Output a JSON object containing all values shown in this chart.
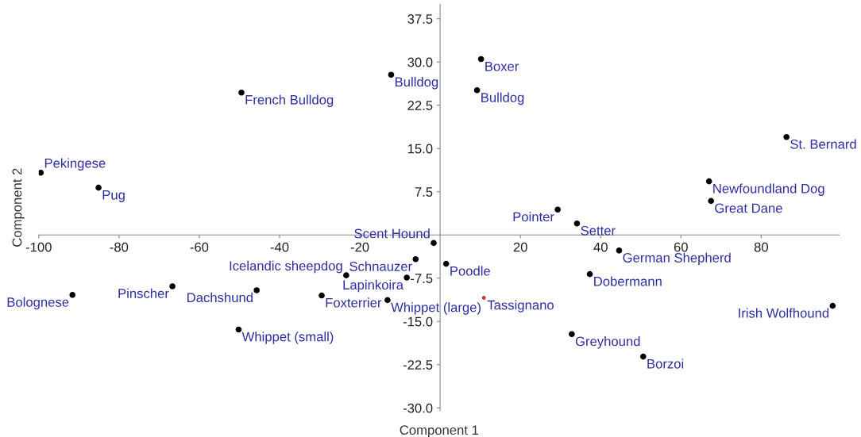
{
  "chart_data": {
    "type": "scatter",
    "xlabel": "Component 1",
    "ylabel": "Component 2",
    "marker": "circle",
    "grid": false,
    "legend": false,
    "xlim": [
      -100,
      99.5
    ],
    "ylim": [
      -30.5,
      40
    ],
    "xticks": [
      -100,
      -80,
      -60,
      -40,
      -20,
      20,
      40,
      60,
      80
    ],
    "yticks": [
      {
        "value": -30,
        "label": "-30.0"
      },
      {
        "value": -22.5,
        "label": "-22.5"
      },
      {
        "value": -15,
        "label": "-15.0"
      },
      {
        "value": -7.5,
        "label": "-7.5"
      },
      {
        "value": 7.5,
        "label": "7.5"
      },
      {
        "value": 15,
        "label": "15.0"
      },
      {
        "value": 22.5,
        "label": "22.5"
      },
      {
        "value": 30,
        "label": "30.0"
      },
      {
        "value": 37.5,
        "label": "37.5"
      }
    ],
    "series": [
      {
        "color": "#000000",
        "x": [
          -99.5,
          -85.1,
          -49.5,
          -12.2,
          10.2,
          9.2,
          86.3,
          67.0,
          67.5,
          29.3,
          34.1,
          44.6,
          37.3,
          97.8,
          32.8,
          50.6,
          -1.6,
          1.5,
          -6.1,
          -8.3,
          -23.4,
          -13.1,
          -29.5,
          -45.7,
          -66.7,
          -91.6,
          -50.2
        ],
        "values": [
          10.8,
          8.2,
          24.7,
          27.8,
          30.5,
          25.1,
          17.0,
          9.3,
          5.9,
          4.4,
          2.0,
          -2.7,
          -6.8,
          -12.3,
          -17.2,
          -21.1,
          -1.4,
          -5.0,
          -4.2,
          -7.4,
          -7.0,
          -11.3,
          -10.5,
          -9.6,
          -8.9,
          -10.4,
          -16.4
        ]
      },
      {
        "color": "#cc3344",
        "x": [
          10.9
        ],
        "values": [
          -10.9
        ]
      }
    ],
    "annotations": [
      {
        "text": "Pekingese",
        "x": -99.5,
        "y": 10.8
      },
      {
        "text": "Pug",
        "x": -85.1,
        "y": 8.2
      },
      {
        "text": "French Bulldog",
        "x": -49.5,
        "y": 24.7
      },
      {
        "text": "Bulldog",
        "x": -12.2,
        "y": 27.8
      },
      {
        "text": "Boxer",
        "x": 10.2,
        "y": 30.5
      },
      {
        "text": "Bulldog",
        "x": 9.2,
        "y": 25.1
      },
      {
        "text": "St. Bernard",
        "x": 86.3,
        "y": 17.0
      },
      {
        "text": "Newfoundland Dog",
        "x": 67.0,
        "y": 9.3
      },
      {
        "text": "Great Dane",
        "x": 67.5,
        "y": 5.9
      },
      {
        "text": "Pointer",
        "x": 29.3,
        "y": 4.4
      },
      {
        "text": "Setter",
        "x": 34.1,
        "y": 2.0
      },
      {
        "text": "German Shepherd",
        "x": 44.6,
        "y": -2.7
      },
      {
        "text": "Dobermann",
        "x": 37.3,
        "y": -6.8
      },
      {
        "text": "Irish Wolfhound",
        "x": 97.8,
        "y": -12.3
      },
      {
        "text": "Tassignano",
        "x": 10.9,
        "y": -10.9
      },
      {
        "text": "Greyhound",
        "x": 32.8,
        "y": -17.2
      },
      {
        "text": "Borzoi",
        "x": 50.6,
        "y": -21.1
      },
      {
        "text": "Scent Hound",
        "x": -1.6,
        "y": -1.4
      },
      {
        "text": "Poodle",
        "x": 1.5,
        "y": -5.0
      },
      {
        "text": "Schnauzer",
        "x": -6.1,
        "y": -4.2
      },
      {
        "text": "Lapinkoira",
        "x": -8.3,
        "y": -7.4
      },
      {
        "text": "Icelandic sheepdog",
        "x": -23.4,
        "y": -7.0
      },
      {
        "text": "Whippet (large)",
        "x": -13.1,
        "y": -11.3
      },
      {
        "text": "Foxterrier",
        "x": -29.5,
        "y": -10.5
      },
      {
        "text": "Dachshund",
        "x": -45.7,
        "y": -9.6
      },
      {
        "text": "Pinscher",
        "x": -66.7,
        "y": -8.9
      },
      {
        "text": "Bolognese",
        "x": -91.6,
        "y": -10.4
      },
      {
        "text": "Whippet (small)",
        "x": -50.2,
        "y": -16.4
      }
    ]
  }
}
